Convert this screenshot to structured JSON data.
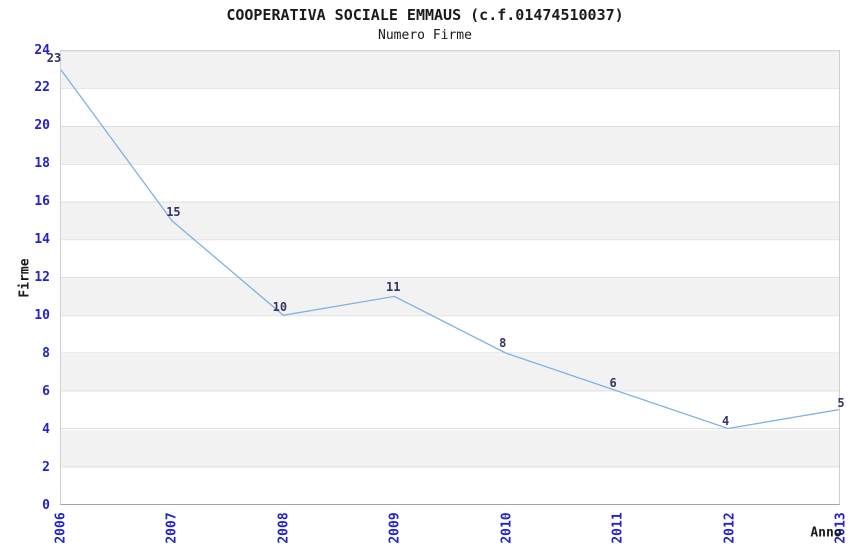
{
  "chart_data": {
    "type": "line",
    "title": "COOPERATIVA SOCIALE EMMAUS (c.f.01474510037)",
    "subtitle": "Numero Firme",
    "xlabel": "Anno",
    "ylabel": "Firme",
    "categories": [
      "2006",
      "2007",
      "2008",
      "2009",
      "2010",
      "2011",
      "2012",
      "2013"
    ],
    "series": [
      {
        "name": "Numero Firme",
        "values": [
          23,
          15,
          10,
          11,
          8,
          6,
          4,
          5
        ]
      }
    ],
    "ylim": [
      0,
      24
    ],
    "ytick_step": 2,
    "yticks": [
      0,
      2,
      4,
      6,
      8,
      10,
      12,
      14,
      16,
      18,
      20,
      22,
      24
    ],
    "legend": "none",
    "grid": {
      "horizontal_gridlines": true,
      "alternating_stripes": true
    },
    "colors": {
      "line": "#7fb1e5",
      "tick_label": "#2222cc",
      "value_label": "#333366",
      "stripe": "#f2f2f2",
      "gridline": "#dcdcdc",
      "title": "#1a1a1a"
    }
  }
}
